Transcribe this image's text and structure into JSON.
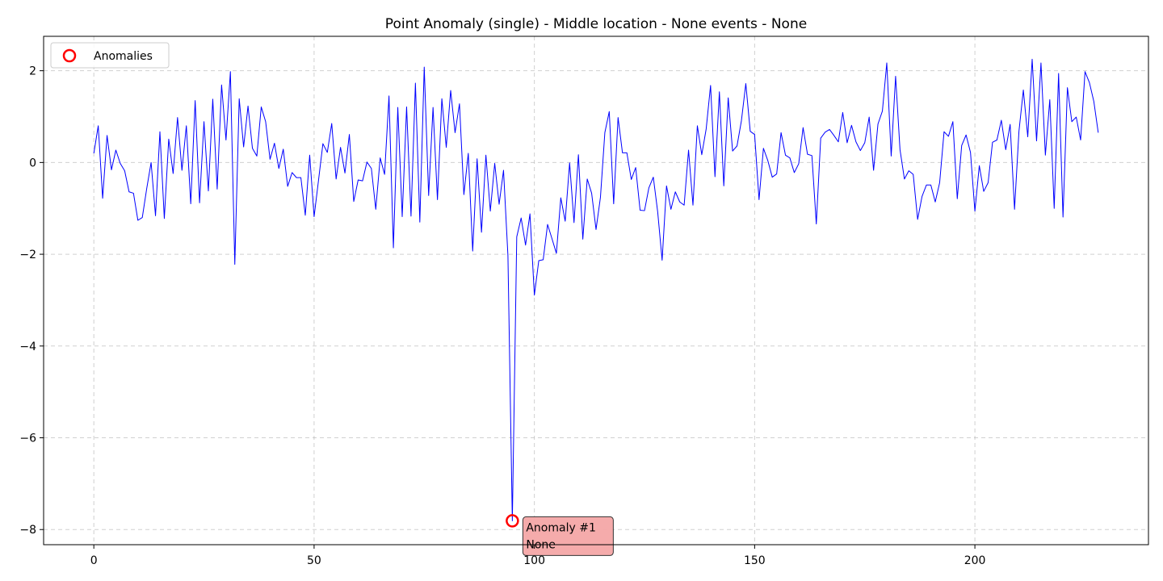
{
  "chart_data": {
    "type": "line",
    "title": "Point Anomaly (single) - Middle location - None events - None",
    "xlabel": "",
    "ylabel": "",
    "xlim": [
      -11.4,
      239.4
    ],
    "ylim": [
      -8.33,
      2.75
    ],
    "xticks": [
      0,
      50,
      100,
      150,
      200
    ],
    "yticks": [
      -8,
      -6,
      -4,
      -2,
      0,
      2
    ],
    "grid": true,
    "legend_position": "top-left",
    "colors": {
      "line": "#0000ff",
      "anomaly": "#ff0000",
      "annotation_bg": "#f4a6a6"
    },
    "series": [
      {
        "name": "",
        "x_start": 0,
        "x_step": 1,
        "values": [
          0.2,
          0.8,
          -0.78,
          0.59,
          -0.16,
          0.27,
          -0.02,
          -0.18,
          -0.64,
          -0.67,
          -1.26,
          -1.2,
          -0.57,
          0.0,
          -1.16,
          0.67,
          -1.22,
          0.51,
          -0.24,
          0.98,
          -0.17,
          0.8,
          -0.9,
          1.35,
          -0.88,
          0.89,
          -0.62,
          1.38,
          -0.58,
          1.69,
          0.49,
          1.98,
          -2.22,
          1.39,
          0.34,
          1.23,
          0.31,
          0.14,
          1.21,
          0.89,
          0.07,
          0.42,
          -0.13,
          0.29,
          -0.52,
          -0.22,
          -0.33,
          -0.33,
          -1.15,
          0.16,
          -1.18,
          -0.39,
          0.41,
          0.22,
          0.85,
          -0.36,
          0.33,
          -0.23,
          0.61,
          -0.85,
          -0.38,
          -0.4,
          0.01,
          -0.13,
          -1.02,
          0.1,
          -0.26,
          1.45,
          -1.86,
          1.2,
          -1.18,
          1.21,
          -1.17,
          1.73,
          -1.3,
          2.08,
          -0.72,
          1.2,
          -0.81,
          1.39,
          0.33,
          1.57,
          0.65,
          1.28,
          -0.7,
          0.2,
          -1.93,
          0.08,
          -1.52,
          0.16,
          -1.06,
          -0.02,
          -0.91,
          -0.17,
          -2.03,
          -7.81,
          -1.62,
          -1.21,
          -1.8,
          -1.12,
          -2.89,
          -2.14,
          -2.12,
          -1.35,
          -1.66,
          -1.98,
          -0.77,
          -1.28,
          -0.01,
          -1.31,
          0.17,
          -1.67,
          -0.36,
          -0.67,
          -1.46,
          -0.76,
          0.65,
          1.11,
          -0.9,
          0.98,
          0.21,
          0.21,
          -0.37,
          -0.11,
          -1.04,
          -1.05,
          -0.55,
          -0.32,
          -1.08,
          -2.13,
          -0.51,
          -1.02,
          -0.64,
          -0.86,
          -0.93,
          0.27,
          -0.93,
          0.8,
          0.17,
          0.73,
          1.68,
          -0.31,
          1.54,
          -0.51,
          1.41,
          0.25,
          0.36,
          0.91,
          1.72,
          0.68,
          0.61,
          -0.81,
          0.31,
          0.04,
          -0.32,
          -0.25,
          0.65,
          0.16,
          0.1,
          -0.22,
          -0.03,
          0.76,
          0.18,
          0.15,
          -1.34,
          0.53,
          0.66,
          0.72,
          0.59,
          0.45,
          1.09,
          0.43,
          0.81,
          0.45,
          0.26,
          0.43,
          0.99,
          -0.17,
          0.84,
          1.12,
          2.17,
          0.14,
          1.88,
          0.28,
          -0.36,
          -0.18,
          -0.26,
          -1.24,
          -0.74,
          -0.49,
          -0.49,
          -0.86,
          -0.44,
          0.67,
          0.57,
          0.89,
          -0.79,
          0.37,
          0.6,
          0.22,
          -1.06,
          -0.07,
          -0.63,
          -0.44,
          0.44,
          0.49,
          0.92,
          0.28,
          0.83,
          -1.02,
          0.68,
          1.58,
          0.56,
          2.25,
          0.47,
          2.17,
          0.16,
          1.37,
          -1.0,
          1.94,
          -1.19,
          1.63,
          0.89,
          0.99,
          0.49,
          1.98,
          1.74,
          1.33,
          0.65
        ]
      }
    ],
    "anomalies": {
      "legend_label": "Anomalies",
      "points": [
        {
          "x": 95,
          "y": -7.81,
          "label_line1": "Anomaly #1",
          "label_line2": "None"
        }
      ]
    }
  }
}
